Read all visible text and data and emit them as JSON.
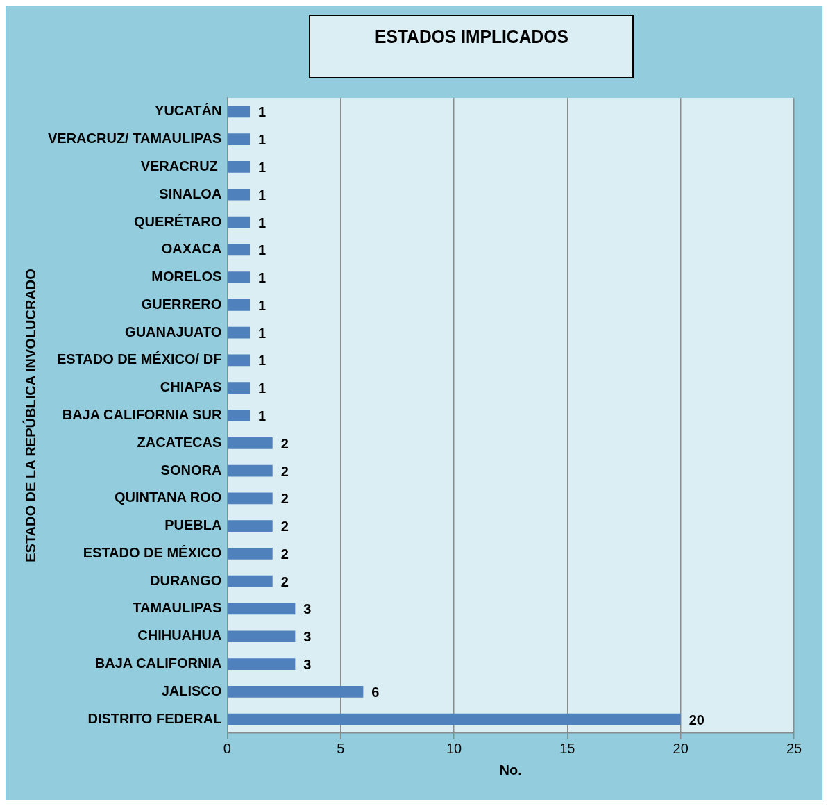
{
  "chart_data": {
    "type": "bar",
    "orientation": "horizontal",
    "title": "ESTADOS IMPLICADOS",
    "xlabel": "No.",
    "ylabel": "ESTADO DE LA REPÚBLICA INVOLUCRADO",
    "categories": [
      "YUCATÁN",
      "VERACRUZ/ TAMAULIPAS",
      "VERACRUZ ",
      "SINALOA",
      "QUERÉTARO",
      "OAXACA",
      "MORELOS",
      "GUERRERO",
      "GUANAJUATO",
      "ESTADO DE MÉXICO/ DF",
      "CHIAPAS",
      "BAJA CALIFORNIA SUR",
      "ZACATECAS",
      "SONORA",
      "QUINTANA ROO",
      "PUEBLA",
      "ESTADO DE MÉXICO",
      "DURANGO",
      "TAMAULIPAS",
      "CHIHUAHUA",
      "BAJA CALIFORNIA",
      "JALISCO",
      "DISTRITO FEDERAL"
    ],
    "values": [
      1,
      1,
      1,
      1,
      1,
      1,
      1,
      1,
      1,
      1,
      1,
      1,
      2,
      2,
      2,
      2,
      2,
      2,
      3,
      3,
      3,
      6,
      20
    ],
    "color": "#4f81bd",
    "xlim": [
      0,
      25
    ],
    "xticks": [
      0,
      5,
      10,
      15,
      20,
      25
    ],
    "grid": "x",
    "data_labels": true,
    "legend": false
  }
}
